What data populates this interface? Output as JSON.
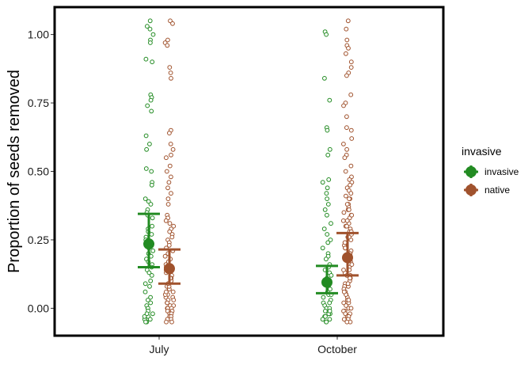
{
  "chart_data": {
    "type": "scatter",
    "title": "",
    "xlabel": "",
    "ylabel": "Proportion of seeds removed",
    "categories": [
      "July",
      "October"
    ],
    "ylim": [
      -0.1,
      1.1
    ],
    "yticks": [
      0.0,
      0.25,
      0.5,
      0.75,
      1.0
    ],
    "ytick_labels": [
      "0.00",
      "0.25",
      "0.50",
      "0.75",
      "1.00"
    ],
    "grid": false,
    "legend": {
      "title": "invasive",
      "placement": "right",
      "entries": [
        {
          "label": "invasive",
          "color": "#228B22"
        },
        {
          "label": "native",
          "color": "#A0522D"
        }
      ]
    },
    "series": [
      {
        "name": "invasive",
        "color": "#228B22",
        "summary": [
          {
            "category": "July",
            "mean": 0.235,
            "lower": 0.15,
            "upper": 0.345
          },
          {
            "category": "October",
            "mean": 0.095,
            "lower": 0.055,
            "upper": 0.155
          }
        ],
        "points": {
          "July": [
            1.05,
            1.03,
            1.02,
            1.0,
            0.98,
            0.97,
            0.91,
            0.9,
            0.78,
            0.77,
            0.76,
            0.74,
            0.72,
            0.63,
            0.6,
            0.58,
            0.51,
            0.5,
            0.46,
            0.45,
            0.4,
            0.39,
            0.38,
            0.36,
            0.35,
            0.34,
            0.33,
            0.3,
            0.29,
            0.28,
            0.27,
            0.26,
            0.25,
            0.24,
            0.23,
            0.22,
            0.21,
            0.2,
            0.19,
            0.18,
            0.17,
            0.16,
            0.15,
            0.14,
            0.13,
            0.12,
            0.1,
            0.09,
            0.08,
            0.06,
            0.04,
            0.03,
            0.02,
            0.01,
            0.0,
            0.0,
            -0.01,
            -0.02,
            -0.03,
            -0.04,
            -0.05,
            -0.05,
            -0.04,
            -0.03,
            -0.02
          ],
          "October": [
            1.01,
            1.0,
            0.84,
            0.76,
            0.66,
            0.65,
            0.58,
            0.56,
            0.47,
            0.46,
            0.44,
            0.42,
            0.4,
            0.38,
            0.36,
            0.34,
            0.31,
            0.29,
            0.27,
            0.25,
            0.24,
            0.22,
            0.2,
            0.19,
            0.18,
            0.16,
            0.15,
            0.14,
            0.13,
            0.12,
            0.11,
            0.1,
            0.09,
            0.08,
            0.07,
            0.06,
            0.05,
            0.04,
            0.03,
            0.02,
            0.01,
            0.0,
            0.0,
            -0.01,
            -0.02,
            -0.03,
            -0.04,
            -0.05,
            -0.05,
            -0.04,
            -0.03,
            -0.02,
            -0.01,
            0.02,
            0.05
          ]
        }
      },
      {
        "name": "native",
        "color": "#A0522D",
        "summary": [
          {
            "category": "July",
            "mean": 0.145,
            "lower": 0.09,
            "upper": 0.215
          },
          {
            "category": "October",
            "mean": 0.185,
            "lower": 0.12,
            "upper": 0.275
          }
        ],
        "points": {
          "July": [
            1.05,
            1.04,
            0.98,
            0.97,
            0.96,
            0.88,
            0.86,
            0.84,
            0.65,
            0.64,
            0.6,
            0.58,
            0.56,
            0.55,
            0.52,
            0.5,
            0.48,
            0.46,
            0.44,
            0.42,
            0.4,
            0.38,
            0.34,
            0.33,
            0.32,
            0.31,
            0.3,
            0.29,
            0.28,
            0.27,
            0.26,
            0.25,
            0.24,
            0.23,
            0.22,
            0.21,
            0.2,
            0.19,
            0.18,
            0.17,
            0.16,
            0.15,
            0.14,
            0.13,
            0.12,
            0.11,
            0.1,
            0.09,
            0.08,
            0.07,
            0.06,
            0.05,
            0.04,
            0.04,
            0.03,
            0.03,
            0.02,
            0.02,
            0.01,
            0.01,
            0.0,
            0.0,
            0.0,
            -0.01,
            -0.01,
            -0.02,
            -0.02,
            -0.03,
            -0.03,
            -0.04,
            -0.04,
            -0.05,
            -0.05,
            0.05,
            0.06,
            0.07,
            0.08,
            0.09,
            0.1,
            0.11
          ],
          "October": [
            1.05,
            1.02,
            0.98,
            0.96,
            0.95,
            0.93,
            0.9,
            0.88,
            0.86,
            0.85,
            0.78,
            0.75,
            0.74,
            0.7,
            0.66,
            0.65,
            0.62,
            0.6,
            0.58,
            0.56,
            0.55,
            0.52,
            0.5,
            0.48,
            0.47,
            0.46,
            0.45,
            0.44,
            0.43,
            0.42,
            0.41,
            0.4,
            0.38,
            0.37,
            0.36,
            0.35,
            0.34,
            0.33,
            0.32,
            0.31,
            0.3,
            0.29,
            0.28,
            0.27,
            0.26,
            0.25,
            0.24,
            0.23,
            0.22,
            0.21,
            0.2,
            0.19,
            0.18,
            0.17,
            0.16,
            0.15,
            0.14,
            0.13,
            0.12,
            0.11,
            0.1,
            0.09,
            0.08,
            0.07,
            0.06,
            0.05,
            0.04,
            0.03,
            0.02,
            0.01,
            0.0,
            0.0,
            -0.01,
            -0.01,
            -0.02,
            -0.02,
            -0.03,
            -0.03,
            -0.04,
            -0.04,
            -0.05,
            -0.05,
            0.02,
            0.03,
            0.05,
            0.06,
            0.08,
            0.09,
            0.11,
            0.12,
            0.14,
            0.16,
            0.18,
            0.2,
            0.22,
            0.24,
            0.26,
            0.28,
            0.3,
            0.32,
            0.34,
            0.36,
            0.38,
            0.4
          ]
        }
      }
    ]
  }
}
